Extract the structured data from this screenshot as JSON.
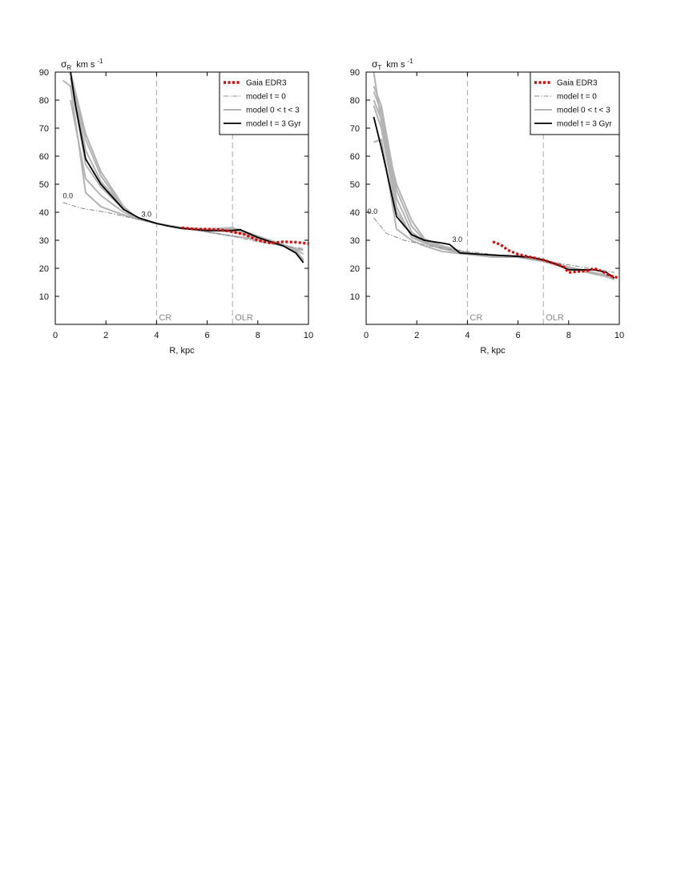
{
  "chart_data": [
    {
      "type": "line",
      "ylabel_symbol": "σ",
      "ylabel_sub": "R",
      "ylabel_unit": "km s",
      "ylabel_exp": "-1",
      "xlabel": "R, kpc",
      "xlim": [
        0,
        10
      ],
      "ylim": [
        0,
        90
      ],
      "xticks": [
        0,
        2,
        4,
        6,
        8,
        10
      ],
      "yticks": [
        10,
        20,
        30,
        40,
        50,
        60,
        70,
        80,
        90
      ],
      "resonances": [
        {
          "x": 4.0,
          "label": "CR"
        },
        {
          "x": 7.0,
          "label": "OLR"
        }
      ],
      "annotations": [
        {
          "x": 0.5,
          "y": 45,
          "text": "0.0"
        },
        {
          "x": 3.6,
          "y": 38.5,
          "text": "3.0"
        }
      ],
      "legend": {
        "position": "top-right",
        "entries": [
          {
            "label": "Gaia EDR3",
            "style": "gaia"
          },
          {
            "label": "model  t = 0",
            "style": "t0"
          },
          {
            "label": "model  0 < t < 3",
            "style": "mid"
          },
          {
            "label": "model  t = 3 Gyr",
            "style": "t3"
          }
        ]
      },
      "series": [
        {
          "name": "Gaia EDR3",
          "style": "gaia",
          "x": [
            5.0,
            5.5,
            6.0,
            6.5,
            7.0,
            7.5,
            8.0,
            8.5,
            9.0,
            9.5,
            10.0
          ],
          "y": [
            34.5,
            34.0,
            34.0,
            33.8,
            33.0,
            32.0,
            30.0,
            29.0,
            29.5,
            29.3,
            28.8
          ]
        },
        {
          "name": "model  t = 0",
          "style": "t0",
          "x": [
            0.3,
            1.0,
            2.0,
            3.0,
            4.0,
            5.0,
            6.0,
            7.0,
            8.0,
            9.0,
            9.8
          ],
          "y": [
            43.5,
            41.5,
            40.0,
            38.0,
            36.0,
            34.5,
            33.0,
            31.5,
            29.5,
            28.0,
            27.0
          ]
        },
        {
          "name": "model  0 < t < 3",
          "style": "mid",
          "x": [
            0.3,
            0.6,
            1.2,
            1.8,
            2.7,
            3.3,
            4.0,
            5.0,
            6.0,
            7.0,
            7.5,
            8.0,
            9.0,
            9.5,
            9.8
          ],
          "y": [
            87,
            85,
            47,
            42,
            39,
            37.5,
            36,
            34.5,
            33,
            31.5,
            31,
            30,
            28,
            27,
            26.5
          ]
        },
        {
          "name": "model  0 < t < 3",
          "style": "mid",
          "x": [
            0.6,
            1.2,
            1.8,
            2.7,
            3.3,
            4.0,
            5.0,
            6.0,
            7.0,
            7.5,
            8.0,
            9.0,
            9.5,
            9.8
          ],
          "y": [
            80,
            52,
            46,
            40,
            37.5,
            36,
            34.5,
            33.5,
            33,
            32,
            30.5,
            28.5,
            27,
            25
          ]
        },
        {
          "name": "model  0 < t < 3",
          "style": "mid",
          "x": [
            0.6,
            1.2,
            1.8,
            2.7,
            3.3,
            4.0,
            5.0,
            6.0,
            7.0,
            7.5,
            8.0,
            9.0,
            9.5,
            9.8
          ],
          "y": [
            88,
            57,
            49,
            41,
            37.5,
            36,
            34.5,
            33.5,
            34,
            33,
            31,
            28.5,
            26.5,
            23
          ]
        },
        {
          "name": "model  0 < t < 3",
          "style": "mid",
          "x": [
            0.6,
            1.2,
            1.8,
            2.7,
            3.3,
            4.0,
            5.0,
            6.0,
            7.0,
            7.5,
            8.0,
            9.0,
            9.5,
            9.8
          ],
          "y": [
            90,
            62,
            51,
            41.5,
            37.5,
            36,
            34.5,
            34,
            34.5,
            33,
            31.5,
            28,
            26,
            23
          ]
        },
        {
          "name": "model  0 < t < 3",
          "style": "mid",
          "x": [
            0.6,
            1.2,
            1.8,
            2.7,
            3.3,
            4.0,
            5.0,
            6.0,
            7.0,
            7.5,
            8.0,
            9.0,
            9.5,
            9.8
          ],
          "y": [
            90,
            66,
            53,
            41.5,
            37.5,
            36,
            34.5,
            33.8,
            34.2,
            32.5,
            31,
            28.5,
            26,
            23
          ]
        },
        {
          "name": "model  0 < t < 3",
          "style": "mid",
          "x": [
            0.6,
            1.2,
            1.8,
            2.7,
            3.3,
            4.0,
            5.0,
            6.0,
            7.0,
            7.5,
            8.0,
            9.0,
            9.5,
            9.8
          ],
          "y": [
            90,
            68,
            54.5,
            42,
            37.5,
            36,
            34.5,
            33.5,
            33.8,
            32.5,
            31.5,
            28.5,
            26,
            22.5
          ]
        },
        {
          "name": "model  t = 3 Gyr",
          "style": "t3",
          "x": [
            0.6,
            0.8,
            1.2,
            1.8,
            2.7,
            3.3,
            4.0,
            4.5,
            5.0,
            6.0,
            7.0,
            7.3,
            8.0,
            8.5,
            9.0,
            9.5,
            9.8
          ],
          "y": [
            90,
            78,
            59,
            50,
            41,
            38,
            36,
            35,
            34.2,
            33.5,
            33.5,
            33.8,
            31,
            29.5,
            28,
            25.5,
            22
          ]
        }
      ]
    },
    {
      "type": "line",
      "ylabel_symbol": "σ",
      "ylabel_sub": "T",
      "ylabel_unit": "km s",
      "ylabel_exp": "-1",
      "xlabel": "R, kpc",
      "xlim": [
        0,
        10
      ],
      "ylim": [
        0,
        90
      ],
      "xticks": [
        0,
        2,
        4,
        6,
        8,
        10
      ],
      "yticks": [
        10,
        20,
        30,
        40,
        50,
        60,
        70,
        80,
        90
      ],
      "resonances": [
        {
          "x": 4.0,
          "label": "CR"
        },
        {
          "x": 7.0,
          "label": "OLR"
        }
      ],
      "annotations": [
        {
          "x": 0.25,
          "y": 39.5,
          "text": "0.0"
        },
        {
          "x": 3.6,
          "y": 29.5,
          "text": "3.0"
        }
      ],
      "legend": {
        "position": "top-right",
        "entries": [
          {
            "label": "Gaia EDR3",
            "style": "gaia"
          },
          {
            "label": "model  t = 0",
            "style": "t0"
          },
          {
            "label": "model  0 < t < 3",
            "style": "mid"
          },
          {
            "label": "model  t = 3 Gyr",
            "style": "t3"
          }
        ]
      },
      "series": [
        {
          "name": "Gaia EDR3",
          "style": "gaia",
          "x": [
            5.0,
            5.3,
            5.6,
            6.0,
            6.5,
            7.0,
            7.5,
            7.8,
            8.0,
            8.3,
            8.7,
            9.0,
            9.3,
            9.6,
            10.0
          ],
          "y": [
            29.5,
            28.5,
            26.5,
            25.0,
            24.0,
            23.0,
            21.5,
            20.5,
            18.5,
            18.8,
            19.0,
            20.0,
            19.0,
            17.5,
            16.5
          ]
        },
        {
          "name": "model  t = 0",
          "style": "t0",
          "x": [
            0.3,
            0.8,
            1.5,
            2.5,
            3.5,
            4.5,
            5.5,
            6.5,
            7.5,
            8.5,
            9.5,
            9.8
          ],
          "y": [
            38.0,
            32.5,
            30.0,
            28.0,
            26.5,
            25.5,
            24.5,
            23.5,
            22.0,
            20.5,
            19.0,
            18.5
          ]
        },
        {
          "name": "model  0 < t < 3",
          "style": "mid",
          "x": [
            0.3,
            0.6,
            1.2,
            1.8,
            2.3,
            3.0,
            4.0,
            5.0,
            6.0,
            7.0,
            8.0,
            9.0,
            9.8
          ],
          "y": [
            65,
            66,
            34,
            30,
            28,
            26,
            25,
            24.5,
            24,
            22.5,
            20,
            18.5,
            17
          ]
        },
        {
          "name": "model  0 < t < 3",
          "style": "mid",
          "x": [
            0.3,
            0.6,
            1.2,
            1.8,
            2.3,
            3.0,
            4.0,
            5.0,
            6.0,
            7.0,
            8.0,
            9.0,
            9.8
          ],
          "y": [
            80,
            73,
            42,
            31,
            29,
            27,
            25.5,
            24.5,
            24,
            22.5,
            20,
            18,
            16.5
          ]
        },
        {
          "name": "model  0 < t < 3",
          "style": "mid",
          "x": [
            0.3,
            0.6,
            1.2,
            1.8,
            2.3,
            3.0,
            4.0,
            5.0,
            6.0,
            7.0,
            8.0,
            9.0,
            9.8
          ],
          "y": [
            83,
            76,
            45,
            33,
            29.5,
            27.5,
            25.5,
            24.5,
            24.5,
            23,
            20.5,
            18.5,
            16.5
          ]
        },
        {
          "name": "model  0 < t < 3",
          "style": "mid",
          "x": [
            0.3,
            0.6,
            1.2,
            1.8,
            2.3,
            3.0,
            4.0,
            5.0,
            6.0,
            7.0,
            8.0,
            9.0,
            9.8
          ],
          "y": [
            85,
            78,
            48,
            35,
            30,
            28,
            25.5,
            24.5,
            24,
            22.5,
            20,
            18.5,
            16
          ]
        },
        {
          "name": "model  0 < t < 3",
          "style": "mid",
          "x": [
            0.3,
            0.6,
            1.2,
            1.8,
            2.3,
            3.0,
            4.0,
            5.0,
            6.0,
            7.0,
            8.0,
            9.0,
            9.8
          ],
          "y": [
            90,
            72,
            50,
            37,
            30.5,
            28,
            25.5,
            24.5,
            24.5,
            23,
            20.5,
            18,
            16.5
          ]
        },
        {
          "name": "model  0 < t < 3",
          "style": "mid",
          "x": [
            0.3,
            0.6,
            1.2,
            1.8,
            2.3,
            3.0,
            4.0,
            5.0,
            6.0,
            7.0,
            8.0,
            9.0,
            9.8
          ],
          "y": [
            78,
            70,
            40,
            32,
            29,
            27,
            25,
            24,
            24,
            22.5,
            20,
            18.5,
            16.5
          ]
        },
        {
          "name": "model  t = 3 Gyr",
          "style": "t3",
          "x": [
            0.3,
            0.6,
            0.8,
            1.2,
            1.8,
            2.3,
            3.0,
            3.3,
            3.7,
            4.5,
            5.5,
            6.5,
            7.0,
            7.5,
            8.0,
            8.5,
            9.0,
            9.5,
            9.8
          ],
          "y": [
            74,
            63,
            55,
            38.5,
            32,
            30,
            29,
            28.5,
            25.5,
            25,
            24.5,
            24,
            23,
            21.5,
            19.5,
            19.5,
            19.5,
            18.5,
            16.5
          ]
        }
      ]
    }
  ]
}
